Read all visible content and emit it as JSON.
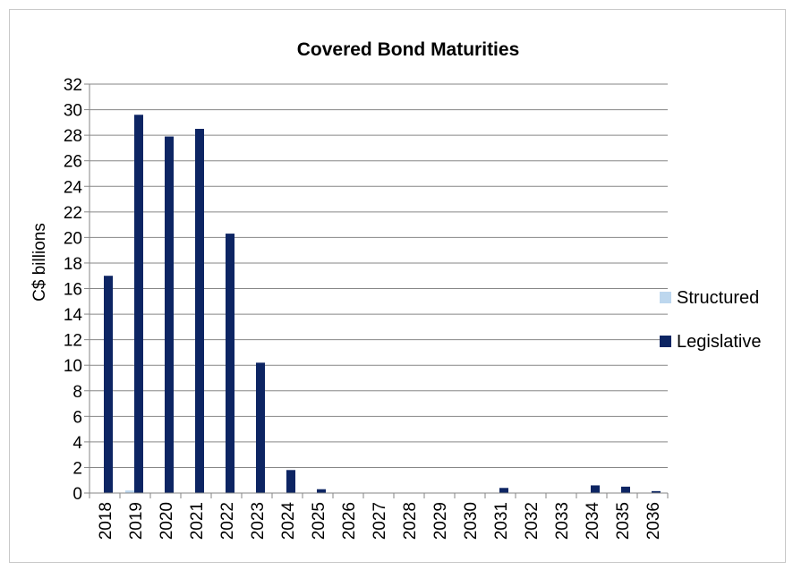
{
  "chart_data": {
    "type": "bar",
    "title": "Covered Bond Maturities",
    "xlabel": "",
    "ylabel": "C$ billions",
    "ylim": [
      0,
      32
    ],
    "yticks": [
      0,
      2,
      4,
      6,
      8,
      10,
      12,
      14,
      16,
      18,
      20,
      22,
      24,
      26,
      28,
      30,
      32
    ],
    "grid": true,
    "legend_position": "right",
    "categories": [
      "2018",
      "2019",
      "2020",
      "2021",
      "2022",
      "2023",
      "2024",
      "2025",
      "2026",
      "2027",
      "2028",
      "2029",
      "2030",
      "2031",
      "2032",
      "2033",
      "2034",
      "2035",
      "2036"
    ],
    "series": [
      {
        "name": "Structured",
        "color": "#bdd7ee",
        "values": [
          0,
          0.2,
          0,
          0,
          0,
          0,
          0,
          0,
          0,
          0,
          0,
          0,
          0,
          0,
          0,
          0,
          0,
          0,
          0
        ]
      },
      {
        "name": "Legislative",
        "color": "#0d2563",
        "values": [
          17.0,
          29.6,
          27.9,
          28.5,
          20.3,
          10.2,
          1.8,
          0.3,
          0,
          0,
          0,
          0,
          0,
          0.4,
          0,
          0,
          0.6,
          0.5,
          0.15
        ]
      }
    ]
  }
}
